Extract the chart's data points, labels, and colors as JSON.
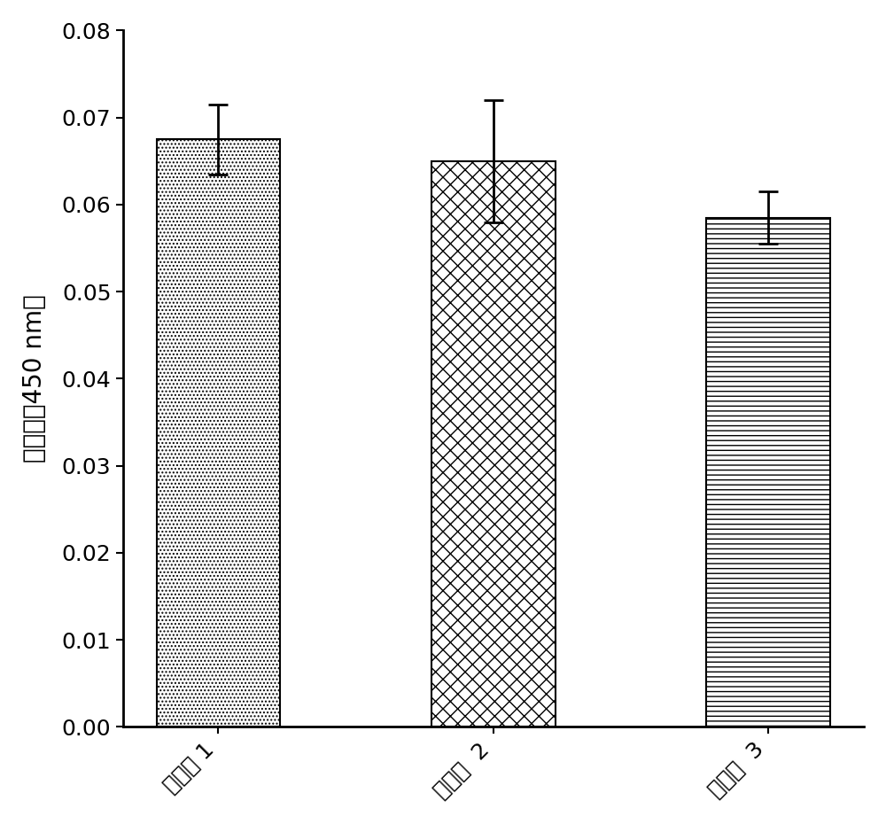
{
  "categories": [
    "对照组 1",
    "对照组  2",
    "对照组  3"
  ],
  "values": [
    0.0675,
    0.065,
    0.0585
  ],
  "errors": [
    0.004,
    0.007,
    0.003
  ],
  "ylabel": "吸光値（450 nm）",
  "ylim": [
    0.0,
    0.08
  ],
  "yticks": [
    0.0,
    0.01,
    0.02,
    0.03,
    0.04,
    0.05,
    0.06,
    0.07,
    0.08
  ],
  "bar_width": 0.45,
  "background_color": "#ffffff",
  "bar_edge_color": "#000000",
  "hatch_patterns": [
    "....",
    "xx",
    "---"
  ],
  "label_fontsize": 20,
  "tick_fontsize": 18,
  "xtick_fontsize": 18,
  "error_capsize": 8,
  "error_linewidth": 2.0,
  "error_color": "black",
  "spine_linewidth": 2.0
}
